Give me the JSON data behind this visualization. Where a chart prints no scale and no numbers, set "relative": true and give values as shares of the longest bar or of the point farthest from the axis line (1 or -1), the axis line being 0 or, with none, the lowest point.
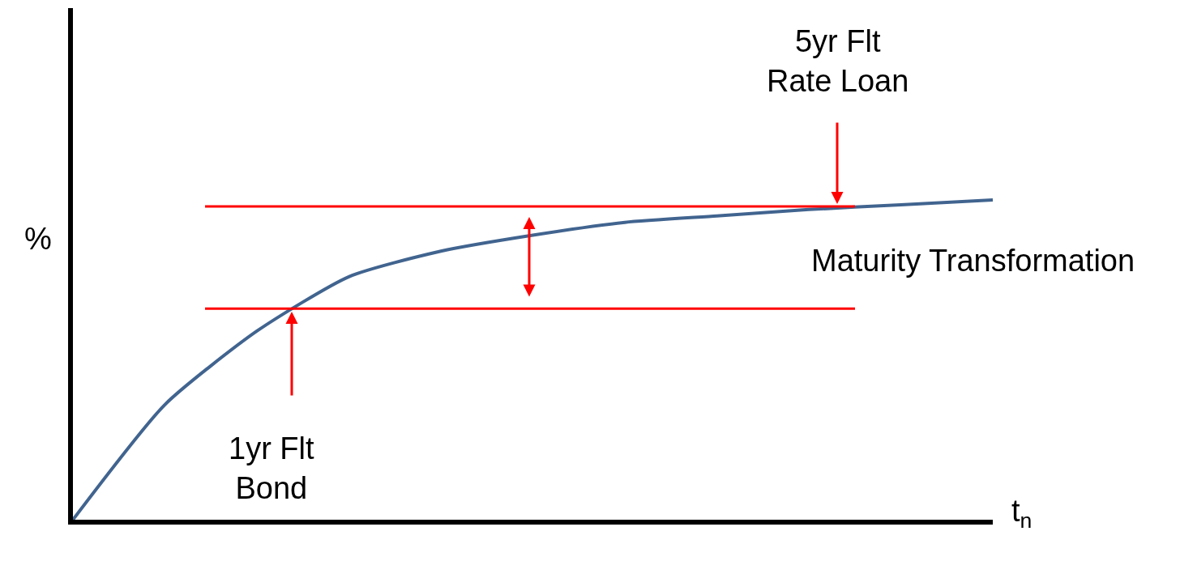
{
  "chart_data": {
    "type": "line",
    "relative": true,
    "xlabel": "t$_{n}$",
    "ylabel": "%",
    "categories": [
      null,
      null,
      null,
      null,
      null,
      null,
      null,
      null,
      null,
      null,
      null
    ],
    "series": [
      {
        "color": "#41648f",
        "values": [
          0,
          0.36,
          0.59,
          0.76,
          0.84,
          0.89,
          0.93,
          0.95,
          0.97,
          0.985,
          1
        ]
      }
    ],
    "ref_lines": [
      {
        "axis": "y",
        "value": 0.98,
        "color": "#ff0000"
      },
      {
        "axis": "y",
        "value": 0.66,
        "color": "#ff0000"
      }
    ],
    "annotations": [
      "5yr Flt\nRate Loan",
      "1yr Flt\nBond",
      "Maturity Transformation"
    ]
  }
}
